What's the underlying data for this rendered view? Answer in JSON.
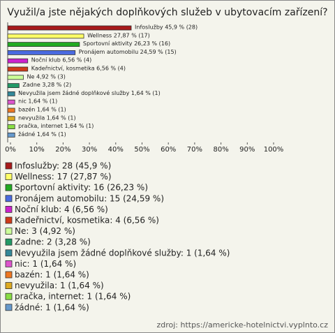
{
  "chart_data": {
    "type": "bar",
    "orientation": "horizontal",
    "title": "Využil/a jste nějakých doplňkových služeb v ubytovacím zařízení?",
    "values": [
      45.9,
      27.87,
      26.23,
      24.59,
      6.56,
      6.56,
      4.92,
      3.28,
      1.64,
      1.64,
      1.64,
      1.64,
      1.64,
      1.64
    ],
    "value_labels": [
      "Infoslužby 45,9 % (28)",
      "Wellness 27,87 % (17)",
      "Sportovní aktivity 26,23 % (16)",
      "Pronájem automobilu 24,59 % (15)",
      "Noční klub 6,56 % (4)",
      "Kadeřnictví, kosmetika 6,56 % (4)",
      "Ne 4,92 % (3)",
      "Zadne 3,28 % (2)",
      "Nevyužila jsem žádné doplňkové služby 1,64 % (1)",
      "nic 1,64 % (1)",
      "bazén 1,64 % (1)",
      "nevyužila 1,64 % (1)",
      "pračka, internet 1,64 % (1)",
      "žádné 1,64 % (1)"
    ],
    "legend": [
      "Infoslužby: 28 (45,9 %)",
      "Wellness: 17 (27,87 %)",
      "Sportovní aktivity: 16 (26,23 %)",
      "Pronájem automobilu: 15 (24,59 %)",
      "Noční klub: 4 (6,56 %)",
      "Kadeřnictví, kosmetika: 4 (6,56 %)",
      "Ne: 3 (4,92 %)",
      "Zadne: 2 (3,28 %)",
      "Nevyužila jsem žádné doplňkové služby: 1 (1,64 %)",
      "nic: 1 (1,64 %)",
      "bazén: 1 (1,64 %)",
      "nevyužila: 1 (1,64 %)",
      "pračka, internet: 1 (1,64 %)",
      "žádné: 1 (1,64 %)"
    ],
    "colors": [
      "#a81a1a",
      "#ffff66",
      "#22aa22",
      "#4a6ae0",
      "#cc22cc",
      "#d03a18",
      "#ccff99",
      "#229966",
      "#338899",
      "#dd55cc",
      "#ee7722",
      "#ddaa22",
      "#88dd44",
      "#6699cc"
    ],
    "xlim": [
      0,
      100
    ],
    "xticks": [
      {
        "value": 0,
        "label": "0%"
      },
      {
        "value": 10,
        "label": "10%"
      },
      {
        "value": 20,
        "label": "20%"
      },
      {
        "value": 30,
        "label": "30%"
      },
      {
        "value": 40,
        "label": "40%"
      },
      {
        "value": 50,
        "label": "50%"
      },
      {
        "value": 60,
        "label": "60%"
      },
      {
        "value": 70,
        "label": "70%"
      },
      {
        "value": 80,
        "label": "80%"
      },
      {
        "value": 90,
        "label": "90%"
      },
      {
        "value": 100,
        "label": "100%"
      }
    ],
    "source": "zdroj: https://americke-hotelnictvi.vyplnto.cz"
  }
}
